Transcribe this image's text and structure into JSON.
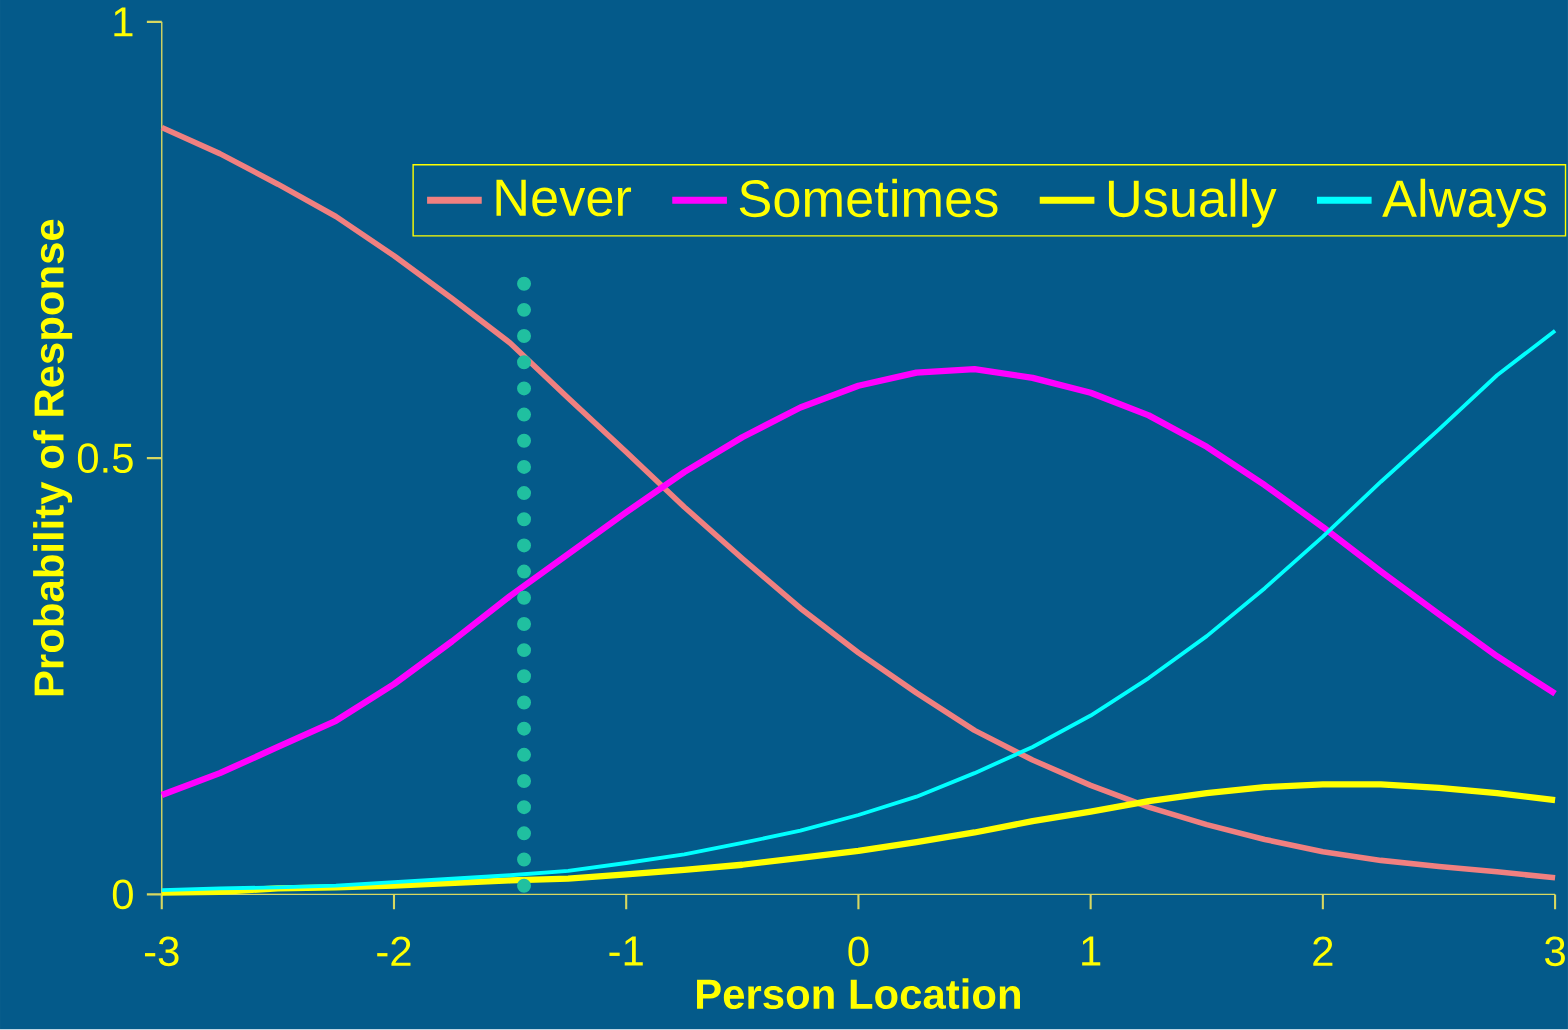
{
  "chart_data": {
    "type": "line",
    "xlabel": "Person Location",
    "ylabel": "Probability of Response",
    "xlim": [
      -3,
      3
    ],
    "ylim": [
      0,
      1
    ],
    "xticks": [
      -3,
      -2,
      -1,
      0,
      1,
      2,
      3
    ],
    "yticks": [
      0,
      0.5,
      1
    ],
    "x": [
      -3,
      -2.75,
      -2.5,
      -2.25,
      -2,
      -1.75,
      -1.5,
      -1.25,
      -1,
      -0.75,
      -0.5,
      -0.25,
      0,
      0.25,
      0.5,
      0.75,
      1,
      1.25,
      1.5,
      1.75,
      2,
      2.25,
      2.5,
      2.75,
      3
    ],
    "legend": "top right",
    "grid": false,
    "marker": "none",
    "series": [
      {
        "name": "Never",
        "color": "#f08080",
        "values": [
          0.879,
          0.849,
          0.814,
          0.777,
          0.732,
          0.683,
          0.632,
          0.569,
          0.507,
          0.444,
          0.385,
          0.328,
          0.277,
          0.231,
          0.188,
          0.154,
          0.125,
          0.1,
          0.08,
          0.063,
          0.049,
          0.039,
          0.032,
          0.026,
          0.019
        ]
      },
      {
        "name": "Sometimes",
        "color": "#ff00ff",
        "values": [
          0.114,
          0.139,
          0.169,
          0.199,
          0.241,
          0.29,
          0.342,
          0.39,
          0.438,
          0.484,
          0.524,
          0.558,
          0.583,
          0.598,
          0.602,
          0.592,
          0.575,
          0.549,
          0.513,
          0.469,
          0.421,
          0.37,
          0.321,
          0.273,
          0.23
        ]
      },
      {
        "name": "Usually",
        "color": "#ffff00",
        "values": [
          0.002,
          0.003,
          0.007,
          0.008,
          0.01,
          0.013,
          0.016,
          0.018,
          0.023,
          0.028,
          0.034,
          0.042,
          0.05,
          0.06,
          0.071,
          0.084,
          0.095,
          0.107,
          0.116,
          0.123,
          0.126,
          0.126,
          0.122,
          0.116,
          0.108
        ]
      },
      {
        "name": "Always",
        "color": "#00ffff",
        "values": [
          0.005,
          0.007,
          0.008,
          0.01,
          0.014,
          0.018,
          0.022,
          0.027,
          0.036,
          0.046,
          0.059,
          0.073,
          0.091,
          0.112,
          0.139,
          0.169,
          0.205,
          0.248,
          0.296,
          0.351,
          0.41,
          0.473,
          0.533,
          0.595,
          0.646
        ]
      },
      {
        "color": "#20c0a0",
        "line_style": "dotted",
        "x": [
          -1.44,
          -1.44
        ],
        "values": [
          0.01,
          0.7
        ]
      }
    ]
  }
}
